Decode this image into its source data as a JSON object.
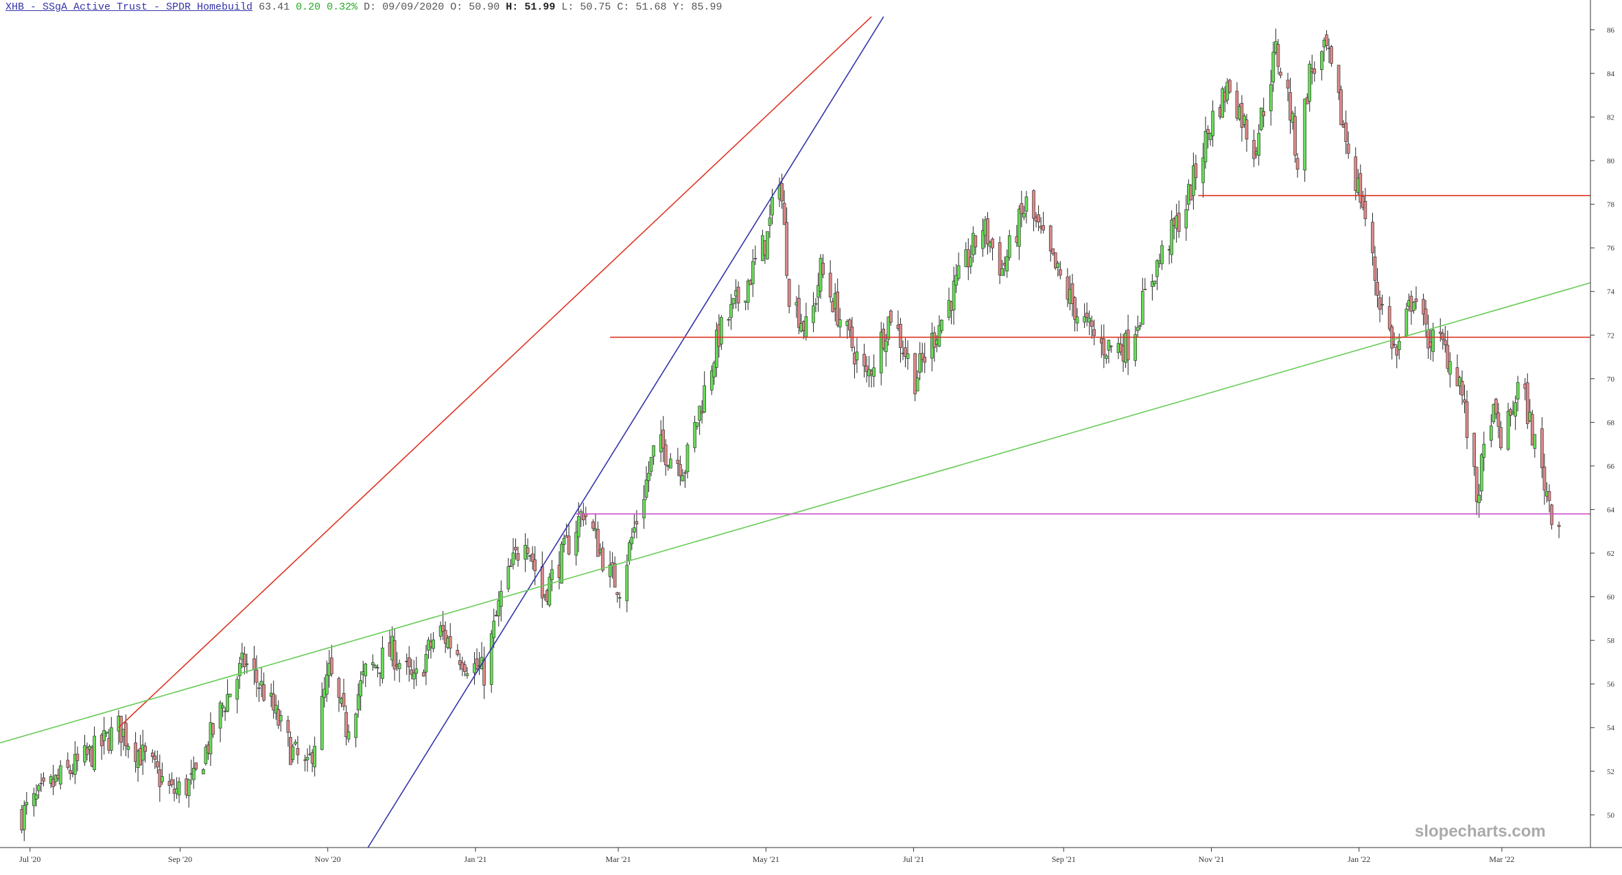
{
  "header": {
    "title": "XHB - SSgA Active Trust - SPDR Homebuild",
    "last": "63.41",
    "change": "0.20",
    "change_pct": "0.32%",
    "date_label": "D:",
    "date": "09/09/2020",
    "open_label": "O:",
    "open": "50.90",
    "high_label": "H:",
    "high": "51.99",
    "low_label": "L:",
    "low": "50.75",
    "close_label": "C:",
    "close": "51.68",
    "year_label": "Y:",
    "year_high": "85.99"
  },
  "watermark": "slopecharts.com",
  "colors": {
    "up": "#66dd55",
    "down": "#dd8888",
    "wick": "#222222",
    "red_line": "#dd3322",
    "blue_line": "#3333aa",
    "green_line": "#66cc55",
    "magenta_line": "#cc55cc"
  },
  "chart_data": {
    "type": "candlestick",
    "title": "XHB - SSgA Active Trust - SPDR Homebuild",
    "ylim": [
      48.5,
      86.8
    ],
    "x_ticks": [
      "Jul '20",
      "Sep '20",
      "Nov '20",
      "Jan '21",
      "Mar '21",
      "May '21",
      "Jul '21",
      "Sep '21",
      "Nov '21",
      "Jan '22",
      "Mar '22"
    ],
    "y_ticks": [
      50,
      52,
      54,
      56,
      58,
      60,
      62,
      64,
      66,
      68,
      70,
      72,
      74,
      76,
      78,
      80,
      82,
      84,
      86
    ],
    "grid": false,
    "anchors": [
      [
        "2020-07-01",
        50.0
      ],
      [
        "2020-07-15",
        51.5
      ],
      [
        "2020-08-01",
        53.0
      ],
      [
        "2020-08-10",
        54.0
      ],
      [
        "2020-08-25",
        52.0
      ],
      [
        "2020-09-01",
        51.0
      ],
      [
        "2020-09-10",
        51.5
      ],
      [
        "2020-09-22",
        55.0
      ],
      [
        "2020-10-01",
        57.0
      ],
      [
        "2020-10-10",
        55.5
      ],
      [
        "2020-10-20",
        53.0
      ],
      [
        "2020-10-27",
        52.0
      ],
      [
        "2020-11-05",
        56.5
      ],
      [
        "2020-11-12",
        54.0
      ],
      [
        "2020-11-20",
        56.5
      ],
      [
        "2020-12-01",
        57.5
      ],
      [
        "2020-12-10",
        56.0
      ],
      [
        "2020-12-20",
        58.5
      ],
      [
        "2021-01-01",
        57.0
      ],
      [
        "2021-01-08",
        56.5
      ],
      [
        "2021-01-15",
        60.0
      ],
      [
        "2021-01-25",
        63.0
      ],
      [
        "2021-02-01",
        60.0
      ],
      [
        "2021-02-10",
        62.0
      ],
      [
        "2021-02-18",
        64.0
      ],
      [
        "2021-03-01",
        61.0
      ],
      [
        "2021-03-05",
        60.5
      ],
      [
        "2021-03-20",
        67.0
      ],
      [
        "2021-04-01",
        66.0
      ],
      [
        "2021-04-15",
        72.0
      ],
      [
        "2021-04-25",
        74.0
      ],
      [
        "2021-05-05",
        76.5
      ],
      [
        "2021-05-10",
        79.5
      ],
      [
        "2021-05-14",
        74.0
      ],
      [
        "2021-05-22",
        72.0
      ],
      [
        "2021-05-27",
        75.0
      ],
      [
        "2021-06-05",
        72.5
      ],
      [
        "2021-06-15",
        70.0
      ],
      [
        "2021-06-25",
        73.0
      ],
      [
        "2021-07-05",
        70.0
      ],
      [
        "2021-07-15",
        72.5
      ],
      [
        "2021-07-25",
        75.0
      ],
      [
        "2021-08-02",
        77.0
      ],
      [
        "2021-08-10",
        75.0
      ],
      [
        "2021-08-20",
        78.0
      ],
      [
        "2021-09-01",
        75.0
      ],
      [
        "2021-09-10",
        73.0
      ],
      [
        "2021-09-20",
        71.5
      ],
      [
        "2021-10-01",
        71.5
      ],
      [
        "2021-10-12",
        75.0
      ],
      [
        "2021-10-25",
        78.0
      ],
      [
        "2021-11-05",
        82.0
      ],
      [
        "2021-11-12",
        83.5
      ],
      [
        "2021-11-22",
        80.5
      ],
      [
        "2021-12-01",
        85.0
      ],
      [
        "2021-12-06",
        83.0
      ],
      [
        "2021-12-10",
        80.0
      ],
      [
        "2021-12-15",
        84.0
      ],
      [
        "2021-12-22",
        85.0
      ],
      [
        "2022-01-01",
        80.0
      ],
      [
        "2022-01-06",
        78.0
      ],
      [
        "2022-01-12",
        74.0
      ],
      [
        "2022-01-20",
        71.0
      ],
      [
        "2022-01-27",
        74.0
      ],
      [
        "2022-02-01",
        72.0
      ],
      [
        "2022-02-08",
        71.5
      ],
      [
        "2022-02-15",
        70.0
      ],
      [
        "2022-02-22",
        64.5
      ],
      [
        "2022-02-28",
        68.5
      ],
      [
        "2022-03-05",
        67.0
      ],
      [
        "2022-03-12",
        70.0
      ],
      [
        "2022-03-18",
        67.0
      ],
      [
        "2022-03-25",
        64.0
      ],
      [
        "2022-03-28",
        63.4
      ]
    ],
    "lines": [
      {
        "color": "red",
        "from": [
          "2020-08-10",
          54.0
        ],
        "to": [
          "2021-06-17",
          86.6
        ]
      },
      {
        "color": "blue",
        "from": [
          "2020-11-21",
          48.5
        ],
        "to": [
          "2021-06-22",
          86.6
        ]
      },
      {
        "color": "green",
        "from": [
          "2020-06-22",
          53.3
        ],
        "to": [
          "2022-04-10",
          74.4
        ]
      },
      {
        "color": "red",
        "from": [
          "2021-03-01",
          71.9
        ],
        "to": [
          "2022-04-10",
          71.9
        ]
      },
      {
        "color": "red",
        "from": [
          "2021-10-30",
          78.4
        ],
        "to": [
          "2022-04-10",
          78.4
        ]
      },
      {
        "color": "magenta",
        "from": [
          "2021-02-15",
          63.8
        ],
        "to": [
          "2022-04-10",
          63.8
        ]
      }
    ]
  }
}
